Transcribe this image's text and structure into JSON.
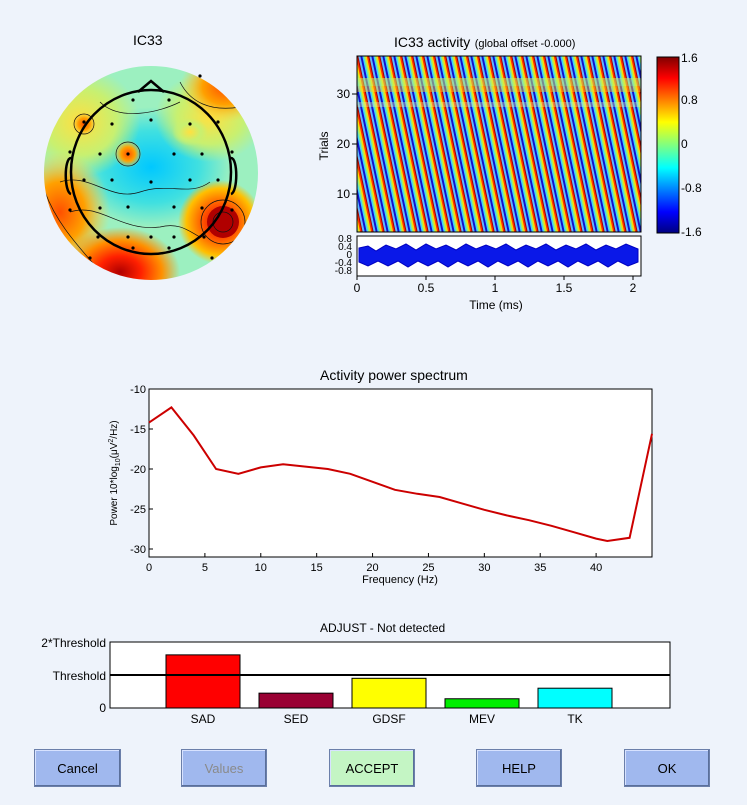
{
  "topo": {
    "title": "IC33"
  },
  "erp": {
    "title": "IC33 activity",
    "title_suffix": "(global offset -0.000)",
    "ylabel": "Trials",
    "xlabel": "Time (ms)",
    "trial_ticks": [
      "30",
      "20",
      "10"
    ],
    "x_ticks": [
      "0",
      "0.5",
      "1",
      "1.5",
      "2"
    ],
    "avg_ticks": [
      "0.8",
      "0.4",
      "0",
      "-0.4",
      "-0.8"
    ]
  },
  "colorbar": {
    "ticks": [
      "1.6",
      "0.8",
      "0",
      "-0.8",
      "-1.6"
    ]
  },
  "spectrum_title": "Activity power spectrum",
  "adjust_title": "ADJUST - Not detected",
  "adjust_ylabels": [
    "2*Threshold",
    "Threshold",
    "0"
  ],
  "buttons": {
    "cancel": "Cancel",
    "values": "Values",
    "accept": "ACCEPT",
    "help": "HELP",
    "ok": "OK"
  },
  "colors": {
    "background": "#eef3fb",
    "button": "#a0b8ee",
    "accept_button": "#c4f5c4",
    "spectrum_line": "#cc0000"
  },
  "chart_data": [
    {
      "type": "line",
      "title": "Activity power spectrum",
      "xlabel": "Frequency (Hz)",
      "ylabel_text": [
        "Power 10*log",
        "10",
        "(μV",
        "2",
        "/Hz)"
      ],
      "xlim": [
        0,
        45
      ],
      "ylim": [
        -31,
        -10
      ],
      "xticks": [
        0,
        5,
        10,
        15,
        20,
        25,
        30,
        35,
        40
      ],
      "yticks": [
        -10,
        -15,
        -20,
        -25,
        -30
      ],
      "x": [
        0,
        2,
        4,
        6,
        8,
        10,
        12,
        14,
        16,
        18,
        20,
        22,
        24,
        26,
        28,
        30,
        32,
        34,
        36,
        38,
        40,
        41,
        43,
        45
      ],
      "values": [
        -14.2,
        -12.3,
        -15.8,
        -20.0,
        -20.6,
        -19.8,
        -19.4,
        -19.7,
        -20.0,
        -20.6,
        -21.6,
        -22.6,
        -23.1,
        -23.5,
        -24.3,
        -25.1,
        -25.8,
        -26.4,
        -27.1,
        -27.9,
        -28.7,
        -29.0,
        -28.6,
        -15.6
      ]
    },
    {
      "type": "bar",
      "title": "ADJUST - Not detected",
      "categories": [
        "SAD",
        "SED",
        "GDSF",
        "MEV",
        "TK"
      ],
      "values": [
        1.61,
        0.45,
        0.9,
        0.28,
        0.6
      ],
      "threshold": 1,
      "ylim": [
        0,
        2
      ],
      "colors": [
        "#ff0000",
        "#990033",
        "#ffff00",
        "#00ee00",
        "#00ffff"
      ]
    }
  ]
}
